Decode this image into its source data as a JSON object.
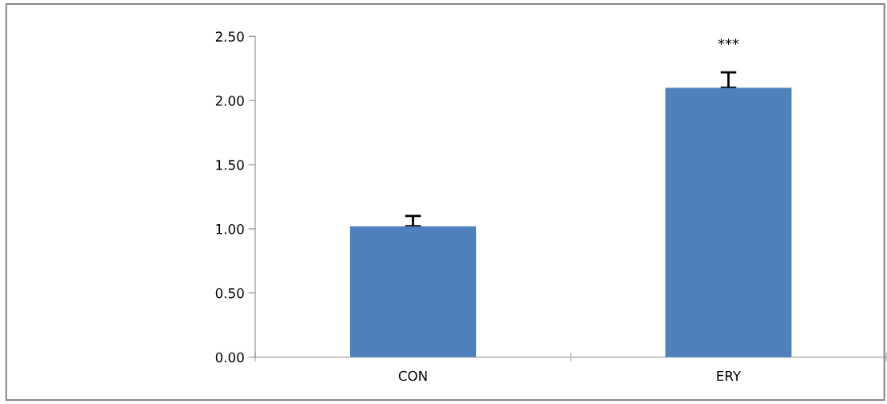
{
  "chart_data": {
    "type": "bar",
    "categories": [
      "CON",
      "ERY"
    ],
    "values": [
      1.02,
      2.1
    ],
    "errors": [
      [
        1.02,
        1.1
      ],
      [
        2.1,
        2.22
      ]
    ],
    "color": "#4f81bd",
    "ylim": [
      0,
      2.5
    ],
    "yticks": [
      {
        "value": 0,
        "label": "0.00"
      },
      {
        "value": 0.5,
        "label": "0.50"
      },
      {
        "value": 1,
        "label": "1.00"
      },
      {
        "value": 1.5,
        "label": "1.50"
      },
      {
        "value": 2,
        "label": "2.00"
      },
      {
        "value": 2.5,
        "label": "2.50"
      }
    ],
    "annotations": [
      "***"
    ],
    "grid": false,
    "legend": false
  }
}
